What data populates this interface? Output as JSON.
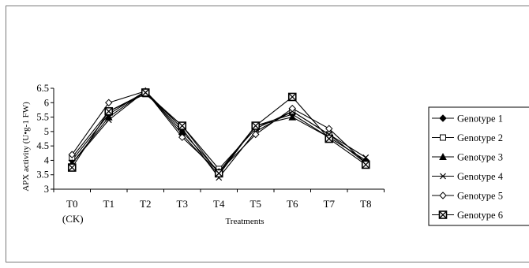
{
  "chart_data": {
    "type": "line",
    "title": "",
    "xlabel": "Treatments",
    "ylabel": "APX activity (U•g-1 FW)",
    "categories": [
      "T0",
      "T1",
      "T2",
      "T3",
      "T4",
      "T5",
      "T6",
      "T7",
      "T8"
    ],
    "category_sublabels": [
      "(CK)",
      "",
      "",
      "",
      "",
      "",
      "",
      "",
      ""
    ],
    "ylim": [
      3,
      6.5
    ],
    "yticks": [
      "3",
      "3.5",
      "4",
      "4.5",
      "5",
      "5.5",
      "6",
      "6.5"
    ],
    "grid": false,
    "legend_position": "right",
    "series": [
      {
        "name": "Genotype 1",
        "marker": "diamond-filled",
        "values": [
          4.0,
          5.6,
          6.4,
          4.9,
          3.5,
          5.2,
          5.6,
          4.8,
          4.0
        ]
      },
      {
        "name": "Genotype 2",
        "marker": "square-open",
        "values": [
          4.1,
          5.7,
          6.3,
          5.2,
          3.7,
          5.1,
          5.7,
          4.9,
          3.9
        ]
      },
      {
        "name": "Genotype 3",
        "marker": "triangle-filled",
        "values": [
          3.9,
          5.5,
          6.4,
          5.0,
          3.6,
          5.2,
          5.5,
          4.8,
          4.0
        ]
      },
      {
        "name": "Genotype 4",
        "marker": "x",
        "values": [
          3.9,
          5.4,
          6.4,
          5.1,
          3.4,
          5.0,
          5.7,
          4.9,
          4.1
        ]
      },
      {
        "name": "Genotype 5",
        "marker": "diamond-open",
        "values": [
          4.2,
          6.0,
          6.4,
          4.8,
          3.6,
          4.9,
          5.8,
          5.1,
          3.9
        ]
      },
      {
        "name": "Genotype 6",
        "marker": "square-x",
        "values": [
          3.75,
          5.7,
          6.35,
          5.2,
          3.55,
          5.2,
          6.2,
          4.75,
          3.85
        ]
      }
    ]
  }
}
